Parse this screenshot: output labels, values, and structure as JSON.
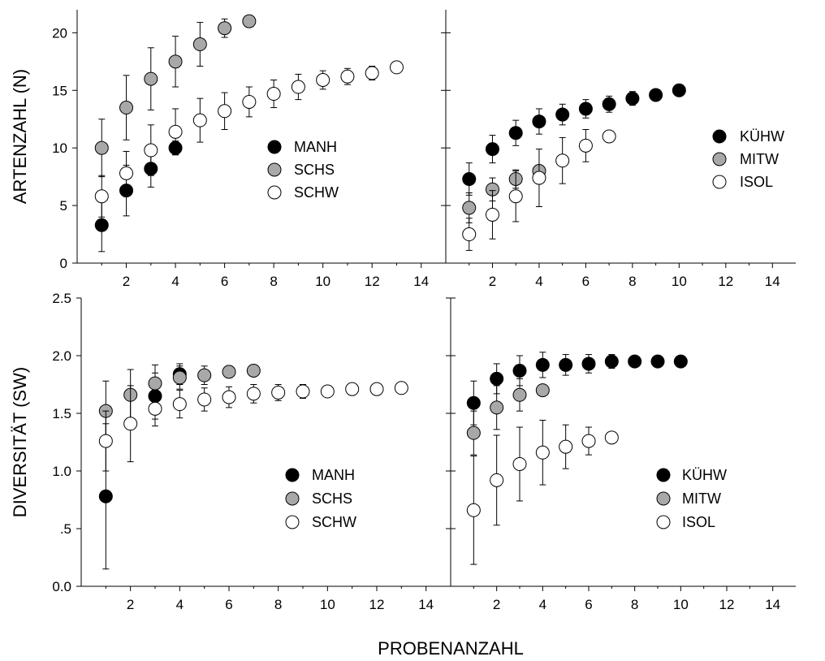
{
  "figure": {
    "xlabel": "PROBENANZAHL"
  },
  "chart_data": [
    {
      "type": "scatter",
      "panel": "top-left",
      "ylabel": "ARTENZAHL (N)",
      "xlim": [
        0,
        15
      ],
      "ylim": [
        0,
        22
      ],
      "x_ticks": [
        2,
        4,
        6,
        8,
        10,
        12,
        14
      ],
      "y_ticks": [
        0,
        5,
        10,
        15,
        20
      ],
      "y_tick_labels": [
        "0",
        "5",
        "10",
        "15",
        "20"
      ],
      "legend": "center-right",
      "series": [
        {
          "name": "MANH",
          "fill": "#000000",
          "x": [
            1,
            2,
            3,
            4
          ],
          "y": [
            3.3,
            6.3,
            8.2,
            10.0
          ],
          "err": [
            2.3,
            2.2,
            1.6,
            0.6
          ]
        },
        {
          "name": "SCHS",
          "fill": "#a8a8a8",
          "x": [
            1,
            2,
            3,
            4,
            5,
            6,
            7
          ],
          "y": [
            10.0,
            13.5,
            16.0,
            17.5,
            19.0,
            20.4,
            21.0
          ],
          "err": [
            2.5,
            2.8,
            2.7,
            2.2,
            1.9,
            0.8,
            0
          ]
        },
        {
          "name": "SCHW",
          "fill": "#ffffff",
          "x": [
            1,
            2,
            3,
            4,
            5,
            6,
            7,
            8,
            9,
            10,
            11,
            12,
            13
          ],
          "y": [
            5.8,
            7.8,
            9.8,
            11.4,
            12.4,
            13.2,
            14.0,
            14.7,
            15.3,
            15.9,
            16.2,
            16.5,
            17.0
          ],
          "err": [
            1.8,
            1.9,
            2.2,
            2.0,
            1.9,
            1.6,
            1.3,
            1.2,
            1.1,
            0.8,
            0.7,
            0.6,
            0
          ]
        }
      ]
    },
    {
      "type": "scatter",
      "panel": "top-right",
      "xlim": [
        0,
        15
      ],
      "ylim": [
        0,
        22
      ],
      "x_ticks": [
        2,
        4,
        6,
        8,
        10,
        12,
        14
      ],
      "y_ticks": [
        0,
        5,
        10,
        15,
        20
      ],
      "legend": "center-right",
      "series": [
        {
          "name": "KÜHW",
          "fill": "#000000",
          "x": [
            1,
            2,
            3,
            4,
            5,
            6,
            7,
            8,
            9,
            10
          ],
          "y": [
            7.3,
            9.9,
            11.3,
            12.3,
            12.9,
            13.4,
            13.8,
            14.3,
            14.6,
            15.0
          ],
          "err": [
            1.4,
            1.2,
            1.1,
            1.1,
            0.9,
            0.8,
            0.7,
            0.6,
            0.3,
            0
          ]
        },
        {
          "name": "MITW",
          "fill": "#a8a8a8",
          "x": [
            1,
            2,
            3,
            4
          ],
          "y": [
            4.8,
            6.4,
            7.3,
            8.0
          ],
          "err": [
            1.3,
            1.0,
            0.8,
            0.5
          ]
        },
        {
          "name": "ISOL",
          "fill": "#ffffff",
          "x": [
            1,
            2,
            3,
            4,
            5,
            6,
            7
          ],
          "y": [
            2.5,
            4.2,
            5.8,
            7.4,
            8.9,
            10.2,
            11.0
          ],
          "err": [
            1.4,
            2.1,
            2.2,
            2.5,
            2.0,
            1.4,
            0
          ]
        }
      ]
    },
    {
      "type": "scatter",
      "panel": "bottom-left",
      "ylabel": "DIVERSITÄT (SW)",
      "xlim": [
        0,
        15
      ],
      "ylim": [
        0,
        2.5
      ],
      "x_ticks": [
        2,
        4,
        6,
        8,
        10,
        12,
        14
      ],
      "y_ticks": [
        0,
        0.5,
        1.0,
        1.5,
        2.0,
        2.5
      ],
      "y_tick_labels": [
        "0.0",
        ".5",
        "1.0",
        "1.5",
        "2.0",
        "2.5"
      ],
      "legend": "bottom-right",
      "series": [
        {
          "name": "MANH",
          "fill": "#000000",
          "x": [
            1,
            3,
            4
          ],
          "y": [
            0.78,
            1.65,
            1.84
          ],
          "err": [
            0.63,
            0.2,
            0.09
          ]
        },
        {
          "name": "SCHS",
          "fill": "#a8a8a8",
          "x": [
            1,
            2,
            3,
            4,
            5,
            6,
            7
          ],
          "y": [
            1.52,
            1.66,
            1.76,
            1.81,
            1.83,
            1.86,
            1.87
          ],
          "err": [
            0.26,
            0.22,
            0.16,
            0.1,
            0.08,
            0.05,
            0
          ]
        },
        {
          "name": "SCHW",
          "fill": "#ffffff",
          "x": [
            1,
            2,
            3,
            4,
            5,
            6,
            7,
            8,
            9,
            10,
            11,
            12,
            13
          ],
          "y": [
            1.26,
            1.41,
            1.54,
            1.58,
            1.62,
            1.64,
            1.67,
            1.68,
            1.69,
            1.69,
            1.71,
            1.71,
            1.72
          ],
          "err": [
            0.26,
            0.33,
            0.15,
            0.12,
            0.1,
            0.09,
            0.08,
            0.07,
            0.06,
            0,
            0,
            0,
            0
          ]
        }
      ]
    },
    {
      "type": "scatter",
      "panel": "bottom-right",
      "xlim": [
        0,
        15
      ],
      "ylim": [
        0,
        2.5
      ],
      "x_ticks": [
        2,
        4,
        6,
        8,
        10,
        12,
        14
      ],
      "y_ticks": [
        0,
        0.5,
        1.0,
        1.5,
        2.0,
        2.5
      ],
      "legend": "bottom-right",
      "series": [
        {
          "name": "KÜHW",
          "fill": "#000000",
          "x": [
            1,
            2,
            3,
            4,
            5,
            6,
            7,
            8,
            9,
            10
          ],
          "y": [
            1.59,
            1.8,
            1.87,
            1.92,
            1.92,
            1.93,
            1.95,
            1.95,
            1.95,
            1.95
          ],
          "err": [
            0.19,
            0.13,
            0.13,
            0.11,
            0.09,
            0.08,
            0.06,
            0,
            0,
            0
          ]
        },
        {
          "name": "MITW",
          "fill": "#a8a8a8",
          "x": [
            1,
            2,
            3,
            4
          ],
          "y": [
            1.33,
            1.55,
            1.66,
            1.7
          ],
          "err": [
            0.19,
            0.19,
            0.14,
            0
          ]
        },
        {
          "name": "ISOL",
          "fill": "#ffffff",
          "x": [
            1,
            2,
            3,
            4,
            5,
            6,
            7
          ],
          "y": [
            0.66,
            0.92,
            1.06,
            1.16,
            1.21,
            1.26,
            1.29
          ],
          "err": [
            0.47,
            0.39,
            0.32,
            0.28,
            0.19,
            0.12,
            0
          ]
        }
      ]
    }
  ]
}
